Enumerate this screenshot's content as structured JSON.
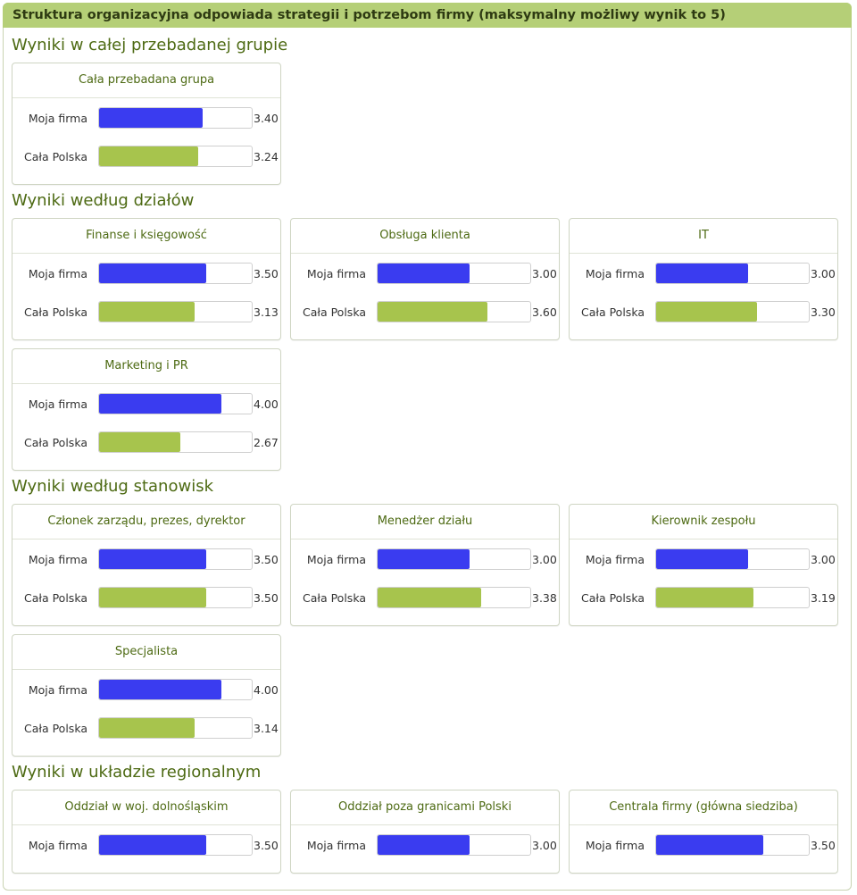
{
  "header": {
    "title": "Struktura organizacyjna odpowiada strategii i potrzebom firmy (maksymalny możliwy wynik to 5)"
  },
  "colors": {
    "moja_firma": "#3a3cf0",
    "cala_polska": "#a7c44d"
  },
  "chart_data": {
    "type": "bar",
    "max_value": 5,
    "series_labels": {
      "moja": "Moja firma",
      "polska": "Cała Polska"
    },
    "sections": [
      {
        "title": "Wyniki w całej przebadanej grupie",
        "panels": [
          {
            "title": "Cała przebadana grupa",
            "rows": [
              {
                "label": "Moja firma",
                "value": 3.4,
                "value_text": "3.40",
                "series": "moja"
              },
              {
                "label": "Cała Polska",
                "value": 3.24,
                "value_text": "3.24",
                "series": "polska"
              }
            ]
          }
        ]
      },
      {
        "title": "Wyniki według działów",
        "panels": [
          {
            "title": "Finanse i księgowość",
            "rows": [
              {
                "label": "Moja firma",
                "value": 3.5,
                "value_text": "3.50",
                "series": "moja"
              },
              {
                "label": "Cała Polska",
                "value": 3.13,
                "value_text": "3.13",
                "series": "polska"
              }
            ]
          },
          {
            "title": "Obsługa klienta",
            "rows": [
              {
                "label": "Moja firma",
                "value": 3.0,
                "value_text": "3.00",
                "series": "moja"
              },
              {
                "label": "Cała Polska",
                "value": 3.6,
                "value_text": "3.60",
                "series": "polska"
              }
            ]
          },
          {
            "title": "IT",
            "rows": [
              {
                "label": "Moja firma",
                "value": 3.0,
                "value_text": "3.00",
                "series": "moja"
              },
              {
                "label": "Cała Polska",
                "value": 3.3,
                "value_text": "3.30",
                "series": "polska"
              }
            ]
          },
          {
            "title": "Marketing i PR",
            "rows": [
              {
                "label": "Moja firma",
                "value": 4.0,
                "value_text": "4.00",
                "series": "moja"
              },
              {
                "label": "Cała Polska",
                "value": 2.67,
                "value_text": "2.67",
                "series": "polska"
              }
            ]
          }
        ]
      },
      {
        "title": "Wyniki według stanowisk",
        "panels": [
          {
            "title": "Członek zarządu, prezes, dyrektor",
            "rows": [
              {
                "label": "Moja firma",
                "value": 3.5,
                "value_text": "3.50",
                "series": "moja"
              },
              {
                "label": "Cała Polska",
                "value": 3.5,
                "value_text": "3.50",
                "series": "polska"
              }
            ]
          },
          {
            "title": "Menedżer działu",
            "rows": [
              {
                "label": "Moja firma",
                "value": 3.0,
                "value_text": "3.00",
                "series": "moja"
              },
              {
                "label": "Cała Polska",
                "value": 3.38,
                "value_text": "3.38",
                "series": "polska"
              }
            ]
          },
          {
            "title": "Kierownik zespołu",
            "rows": [
              {
                "label": "Moja firma",
                "value": 3.0,
                "value_text": "3.00",
                "series": "moja"
              },
              {
                "label": "Cała Polska",
                "value": 3.19,
                "value_text": "3.19",
                "series": "polska"
              }
            ]
          },
          {
            "title": "Specjalista",
            "rows": [
              {
                "label": "Moja firma",
                "value": 4.0,
                "value_text": "4.00",
                "series": "moja"
              },
              {
                "label": "Cała Polska",
                "value": 3.14,
                "value_text": "3.14",
                "series": "polska"
              }
            ]
          }
        ]
      },
      {
        "title": "Wyniki w układzie regionalnym",
        "panels": [
          {
            "title": "Oddział w woj. dolnośląskim",
            "rows": [
              {
                "label": "Moja firma",
                "value": 3.5,
                "value_text": "3.50",
                "series": "moja"
              }
            ]
          },
          {
            "title": "Oddział poza granicami Polski",
            "rows": [
              {
                "label": "Moja firma",
                "value": 3.0,
                "value_text": "3.00",
                "series": "moja"
              }
            ]
          },
          {
            "title": "Centrala firmy (główna siedziba)",
            "rows": [
              {
                "label": "Moja firma",
                "value": 3.5,
                "value_text": "3.50",
                "series": "moja"
              }
            ]
          }
        ]
      }
    ]
  }
}
